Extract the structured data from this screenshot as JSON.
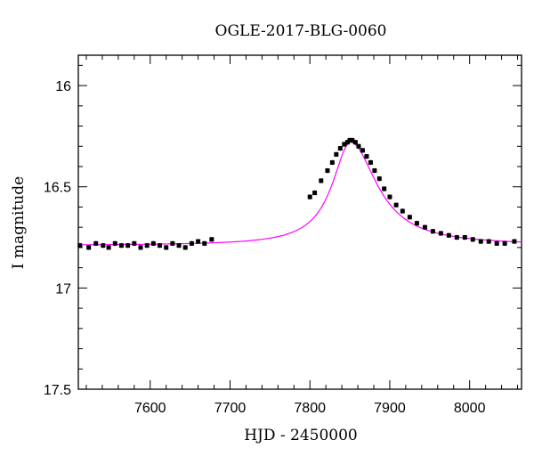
{
  "chart_data": {
    "type": "scatter",
    "title": "OGLE-2017-BLG-0060",
    "xlabel": "HJD - 2450000",
    "ylabel": "I magnitude",
    "xlim": [
      7510,
      8065
    ],
    "ylim": [
      17.5,
      15.85
    ],
    "y_inverted": true,
    "x_ticks": [
      7600,
      7700,
      7800,
      7900,
      8000
    ],
    "y_ticks": [
      16,
      16.5,
      17,
      17.5
    ],
    "x_tick_labels": [
      "7600",
      "7700",
      "7800",
      "7900",
      "8000"
    ],
    "y_tick_labels": [
      "16",
      "16.5",
      "17",
      "17.5"
    ],
    "grid": false,
    "legend": "none",
    "series": [
      {
        "kind": "points_with_errorbars",
        "color": "#000000",
        "x": [
          7512,
          7523,
          7532,
          7541,
          7548,
          7556,
          7564,
          7572,
          7580,
          7588,
          7596,
          7604,
          7612,
          7620,
          7628,
          7636,
          7644,
          7652,
          7660,
          7668,
          7677,
          7800,
          7806,
          7814,
          7822,
          7828,
          7833,
          7838,
          7843,
          7847,
          7850,
          7853,
          7857,
          7861,
          7866,
          7871,
          7876,
          7881,
          7887,
          7893,
          7900,
          7908,
          7916,
          7925,
          7934,
          7944,
          7954,
          7964,
          7974,
          7984,
          7994,
          8004,
          8014,
          8024,
          8034,
          8044,
          8056
        ],
        "y": [
          16.79,
          16.8,
          16.78,
          16.79,
          16.8,
          16.78,
          16.79,
          16.79,
          16.78,
          16.8,
          16.79,
          16.78,
          16.79,
          16.8,
          16.78,
          16.79,
          16.8,
          16.78,
          16.77,
          16.78,
          16.76,
          16.55,
          16.53,
          16.47,
          16.42,
          16.38,
          16.34,
          16.31,
          16.29,
          16.28,
          16.27,
          16.27,
          16.28,
          16.3,
          16.32,
          16.35,
          16.38,
          16.42,
          16.46,
          16.51,
          16.55,
          16.59,
          16.62,
          16.65,
          16.68,
          16.7,
          16.72,
          16.73,
          16.74,
          16.75,
          16.75,
          16.76,
          16.77,
          16.77,
          16.78,
          16.78,
          16.77
        ],
        "err": 0.012
      },
      {
        "kind": "model_curve",
        "color": "#ff00ff",
        "baseline_mag": 16.79,
        "peak_mag": 16.28,
        "peak_time": 7851,
        "rise_timescale": 28,
        "decay_timescale": 40,
        "x_range": [
          7510,
          8065
        ]
      }
    ]
  }
}
